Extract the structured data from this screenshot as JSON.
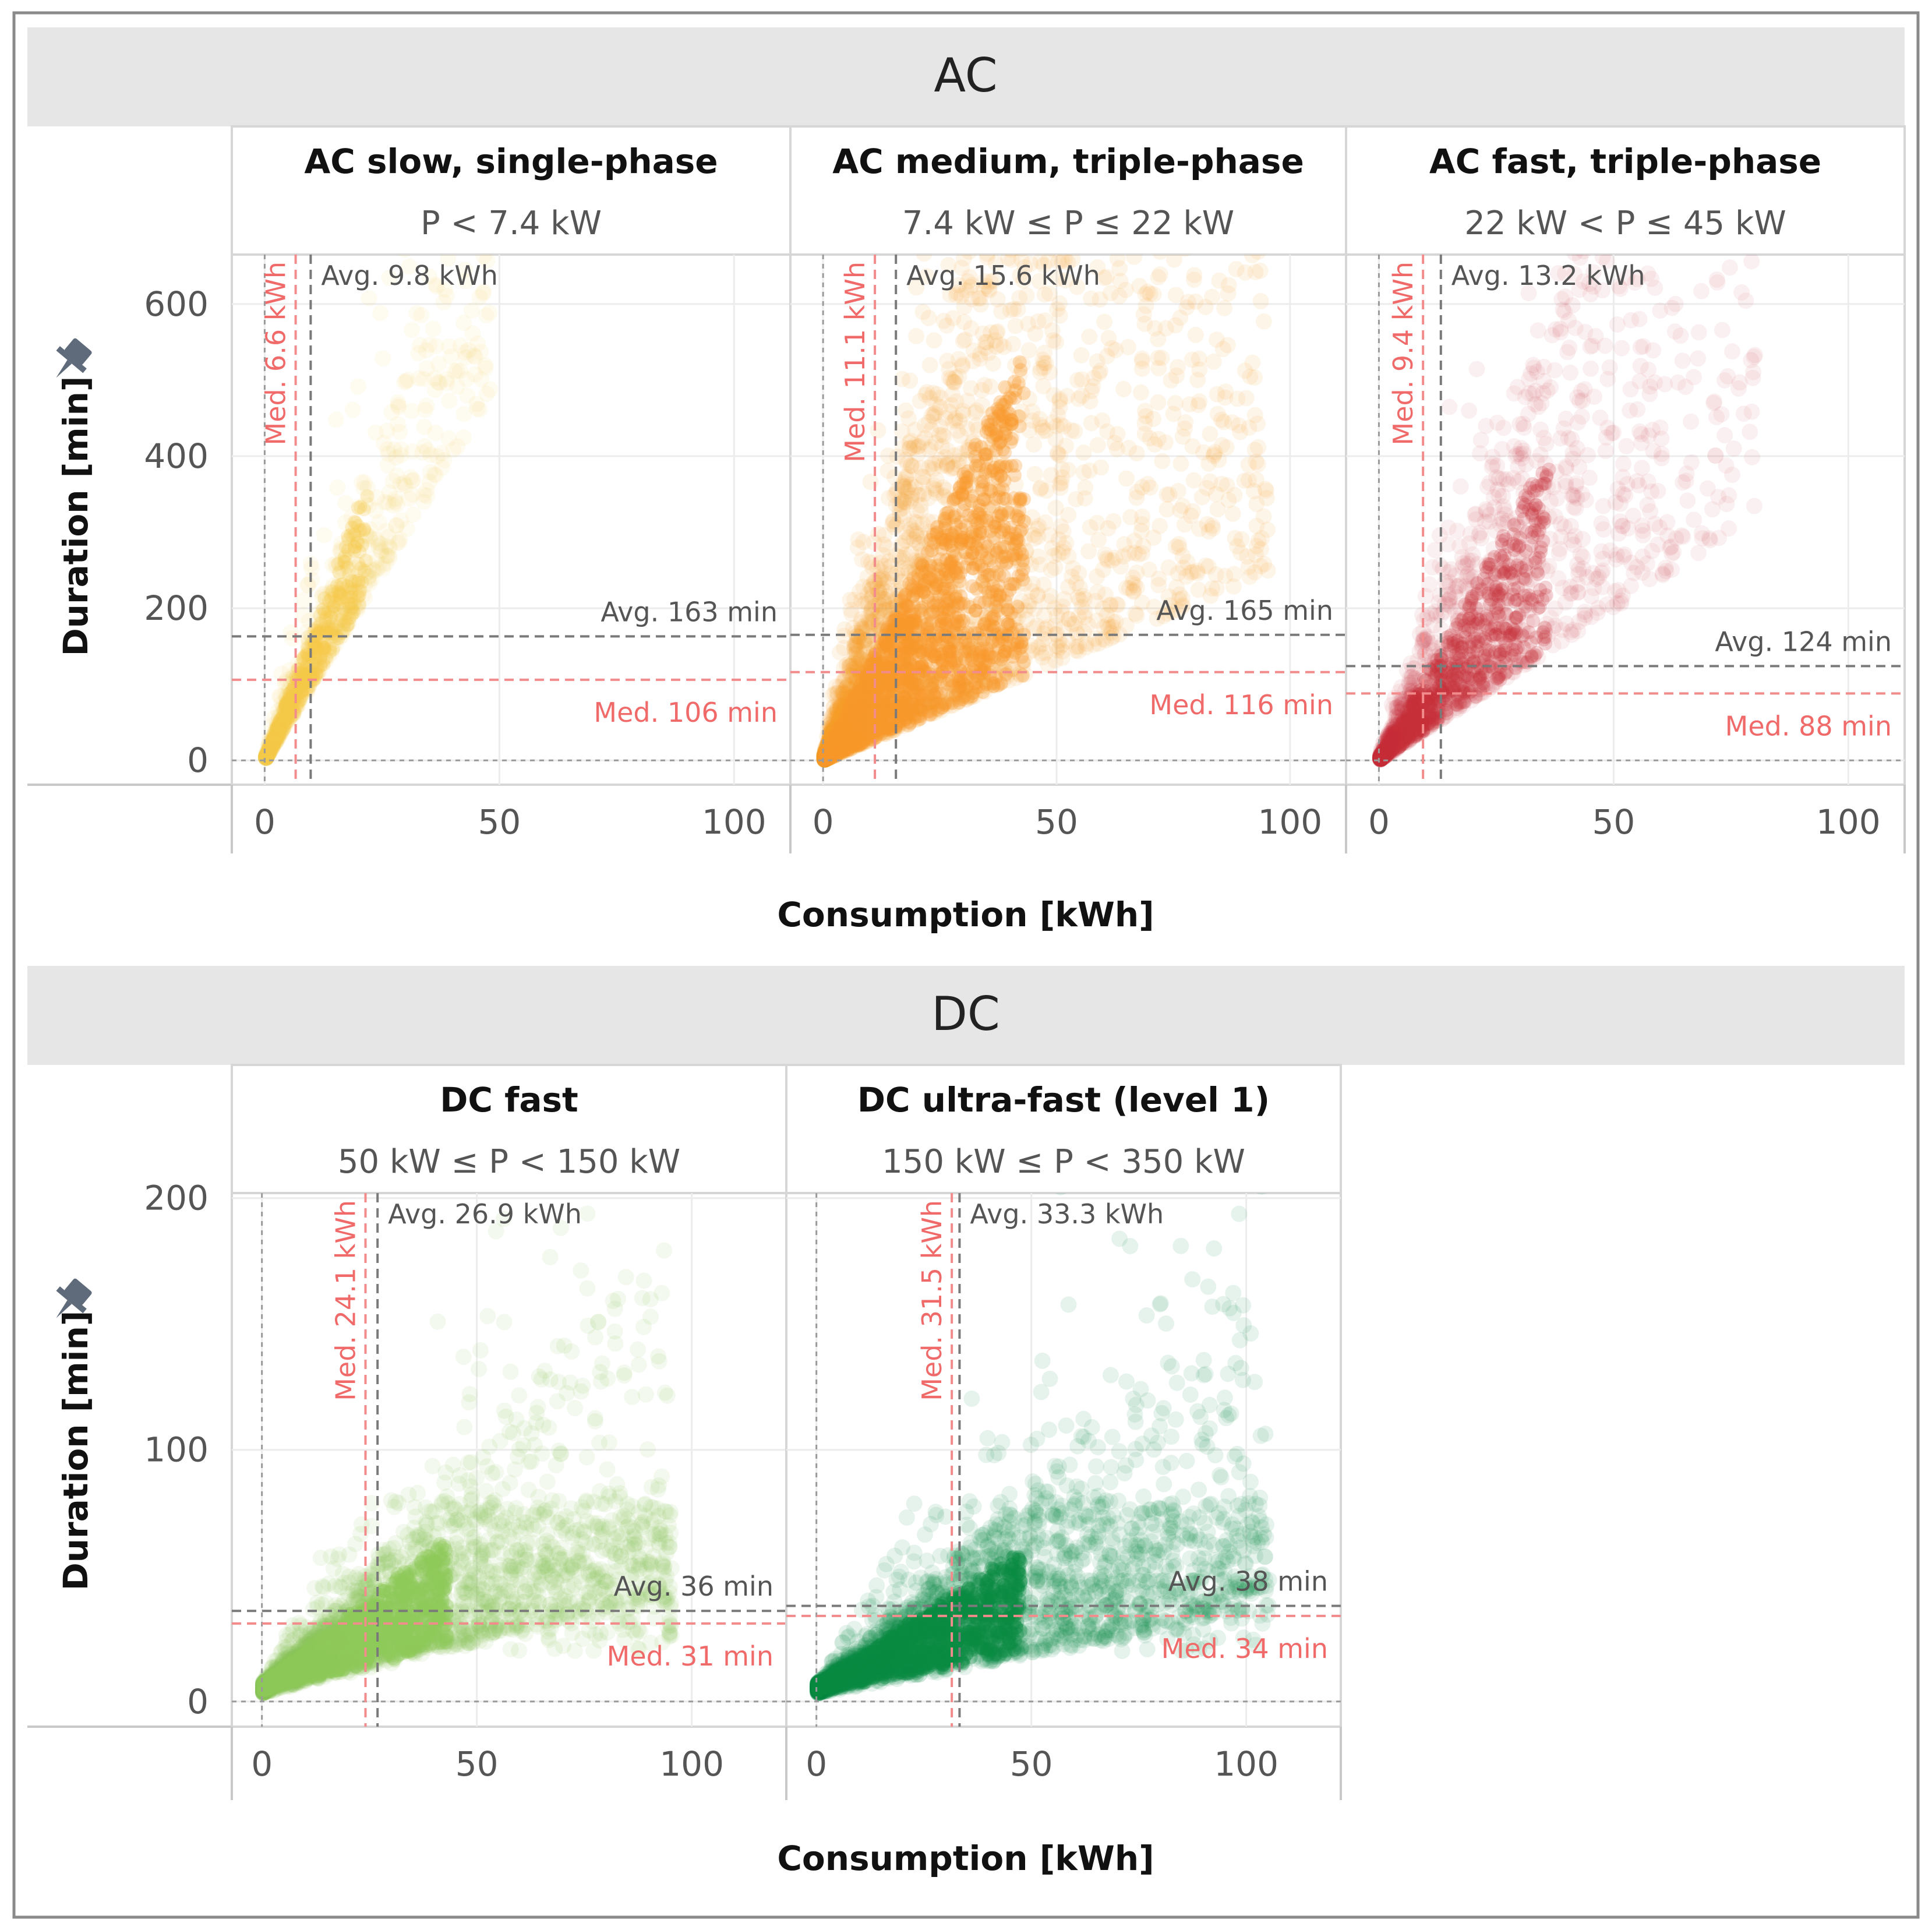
{
  "chart_data": [
    {
      "type": "scatter",
      "group": "AC",
      "ylabel": "Duration [min]",
      "xlabel": "Consumption [kWh]",
      "xlim": [
        -7,
        112
      ],
      "ylim": [
        -32,
        665
      ],
      "xticks": [
        0,
        50,
        100
      ],
      "yticks": [
        0,
        200,
        400,
        600
      ],
      "panels": [
        {
          "title": "AC slow, single-phase",
          "subtitle": "P < 7.4 kW",
          "color": "#f7c948",
          "avg_x": 9.8,
          "med_x": 6.6,
          "avg_y": 163,
          "med_y": 106,
          "avg_x_label": "Avg. 9.8 kWh",
          "med_x_label": "Med. 6.6 kWh",
          "avg_y_label": "Avg. 163 min",
          "med_y_label": "Med. 106 min",
          "opacity": 0.08,
          "rate_min": 10,
          "rate_max": 25,
          "xmax": 48,
          "spread": 0.55,
          "points": 700
        },
        {
          "title": "AC medium, triple-phase",
          "subtitle": "7.4 kW ≤ P ≤ 22 kW",
          "color": "#f7992a",
          "avg_x": 15.6,
          "med_x": 11.1,
          "avg_y": 165,
          "med_y": 116,
          "avg_x_label": "Avg. 15.6 kWh",
          "med_x_label": "Med. 11.1 kWh",
          "avg_y_label": "Avg. 165 min",
          "med_y_label": "Med. 116 min",
          "opacity": 0.1,
          "rate_min": 2.6,
          "rate_max": 25,
          "xmax": 95,
          "spread": 0.9,
          "points": 3200
        },
        {
          "title": "AC fast, triple-phase",
          "subtitle": "22 kW < P ≤ 45 kW",
          "color": "#c73038",
          "avg_x": 13.2,
          "med_x": 9.4,
          "avg_y": 124,
          "med_y": 88,
          "avg_x_label": "Avg. 13.2 kWh",
          "med_x_label": "Med. 9.4 kWh",
          "avg_y_label": "Avg. 124 min",
          "med_y_label": "Med. 88 min",
          "opacity": 0.07,
          "rate_min": 4,
          "rate_max": 20,
          "xmax": 80,
          "spread": 0.8,
          "points": 1400
        }
      ]
    },
    {
      "type": "scatter",
      "group": "DC",
      "ylabel": "Duration [min]",
      "xlabel": "Consumption [kWh]",
      "xlim": [
        -7,
        122
      ],
      "ylim": [
        -10,
        202
      ],
      "xticks": [
        0,
        50,
        100
      ],
      "yticks": [
        0,
        100,
        200
      ],
      "panels": [
        {
          "title": "DC fast",
          "subtitle": "50 kW ≤ P < 150 kW",
          "color": "#8dc95a",
          "avg_x": 26.9,
          "med_x": 24.1,
          "avg_y": 36,
          "med_y": 31,
          "avg_x_label": "Avg. 26.9 kWh",
          "med_x_label": "Med. 24.1 kWh",
          "avg_y_label": "Avg. 36 min",
          "med_y_label": "Med. 31 min",
          "opacity": 0.1,
          "rate_min": 0.4,
          "rate_max": 2.6,
          "xmax": 95,
          "spread": 0.7,
          "points": 2600
        },
        {
          "title": "DC ultra-fast (level 1)",
          "subtitle": "150 kW ≤ P < 350 kW",
          "color": "#0b8a43",
          "avg_x": 33.3,
          "med_x": 31.5,
          "avg_y": 38,
          "med_y": 34,
          "avg_x_label": "Avg. 33.3 kWh",
          "med_x_label": "Med. 31.5 kWh",
          "avg_y_label": "Avg. 38 min",
          "med_y_label": "Med. 34 min",
          "opacity": 0.1,
          "rate_min": 0.3,
          "rate_max": 2.2,
          "xmax": 105,
          "spread": 0.7,
          "points": 2600
        }
      ]
    }
  ]
}
